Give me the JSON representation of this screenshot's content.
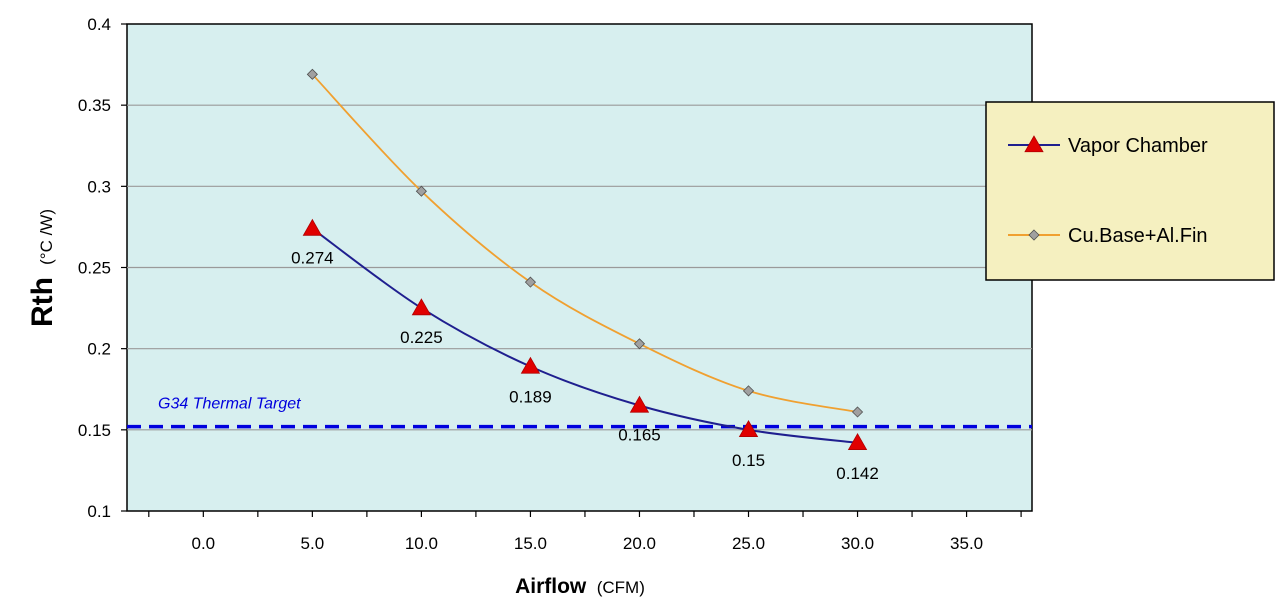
{
  "chart_data": {
    "type": "line",
    "title": "",
    "xlabel": "Airflow",
    "xlabel_unit": "(CFM)",
    "ylabel": "Rth",
    "ylabel_unit": "(°C /W)",
    "xlim": [
      -3.5,
      38.0
    ],
    "ylim": [
      0.1,
      0.4
    ],
    "x_ticks": [
      0,
      5,
      10,
      15,
      20,
      25,
      30,
      35
    ],
    "x_tick_labels": [
      "0.0",
      "5.0",
      "10.0",
      "15.0",
      "20.0",
      "25.0",
      "30.0",
      "35.0"
    ],
    "y_ticks": [
      0.1,
      0.15,
      0.2,
      0.25,
      0.3,
      0.35,
      0.4
    ],
    "y_tick_labels": [
      "0.1",
      "0.15",
      "0.2",
      "0.25",
      "0.3",
      "0.35",
      "0.4"
    ],
    "grid": "horizontal",
    "legend_position": "right",
    "plot_background": "#d7efef",
    "series": [
      {
        "name": "Vapor Chamber",
        "color": "#1f1f8f",
        "marker": "triangle",
        "marker_color": "#e00000",
        "x": [
          5,
          10,
          15,
          20,
          25,
          30
        ],
        "y": [
          0.274,
          0.225,
          0.189,
          0.165,
          0.15,
          0.142
        ],
        "data_labels": [
          "0.274",
          "0.225",
          "0.189",
          "0.165",
          "0.15",
          "0.142"
        ]
      },
      {
        "name": "Cu.Base+Al.Fin",
        "color": "#f0a030",
        "marker": "diamond",
        "marker_color": "#a0a0a0",
        "x": [
          5,
          10,
          15,
          20,
          25,
          30
        ],
        "y": [
          0.369,
          0.297,
          0.241,
          0.203,
          0.174,
          0.161
        ]
      }
    ],
    "reference_line": {
      "label": "G34 Thermal Target",
      "y": 0.152,
      "color": "#0000dd",
      "style": "dashed"
    }
  }
}
